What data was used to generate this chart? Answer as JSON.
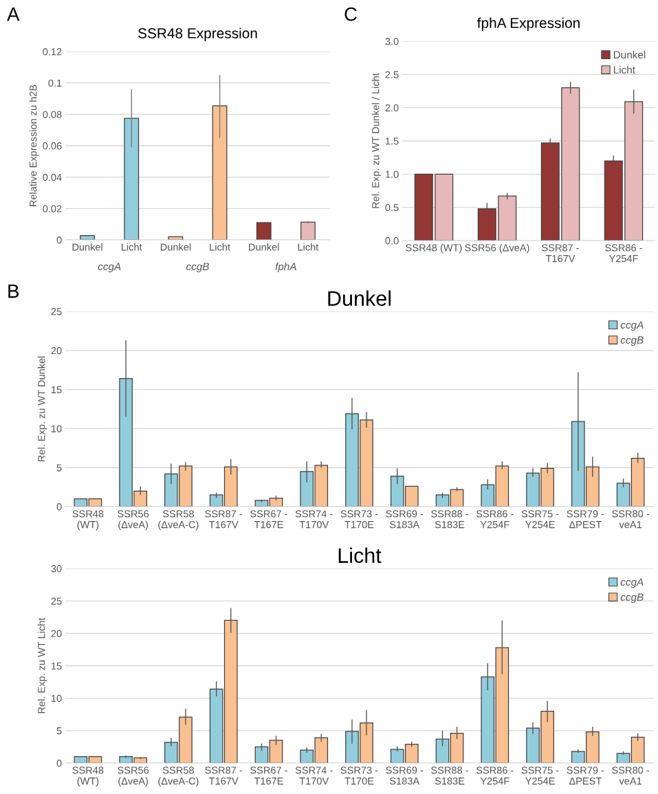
{
  "chart_data": [
    {
      "type": "bar",
      "title": "SSR48 Expression",
      "ylabel": "Relative Expression zu h2B",
      "annotations": [
        "A",
        "ccgA",
        "ccgB",
        "fphA"
      ],
      "categories": [
        "Dunkel",
        "Licht",
        "Dunkel",
        "Licht",
        "Dunkel",
        "Licht"
      ],
      "values": [
        0.0028,
        0.0775,
        0.002,
        0.0855,
        0.011,
        0.0113
      ],
      "colors": [
        "#92cddc",
        "#92cddc",
        "#fac090",
        "#fac090",
        "#943634",
        "#e6b9b8"
      ],
      "errors": [
        null,
        [
          0.059,
          0.096
        ],
        null,
        [
          0.065,
          0.105
        ],
        null,
        0.0007
      ],
      "ylim": [
        0,
        0.12
      ],
      "yticks": [
        0,
        0.02,
        0.04,
        0.06,
        0.08,
        0.1,
        0.12
      ],
      "grid": "y",
      "legend": false
    },
    {
      "type": "bar",
      "title": "fphA Expression",
      "ylabel": "Rel. Exp. zu WT Dunkel / Licht",
      "annotations": [
        "C"
      ],
      "categories": [
        "SSR48 (WT)",
        "SSR56 (ΔveA)",
        "SSR87 -\nT167V",
        "SSR86 -\nY254F"
      ],
      "series": [
        {
          "name": "Dunkel",
          "color": "#943634",
          "values": [
            1.0,
            0.48,
            1.47,
            1.2
          ],
          "errors": [
            null,
            0.09,
            0.07,
            0.08
          ]
        },
        {
          "name": "Licht",
          "color": "#e6b9b8",
          "values": [
            1.0,
            0.67,
            2.3,
            2.09
          ],
          "errors": [
            null,
            0.05,
            0.09,
            0.18
          ]
        }
      ],
      "ylim": [
        0,
        3.0
      ],
      "yticks": [
        {
          "value": 0,
          "label": "0.0"
        },
        0.5,
        {
          "value": 1,
          "label": "1.0"
        },
        1.5,
        {
          "value": 2,
          "label": "2.0"
        },
        2.5,
        {
          "value": 3,
          "label": "3.0"
        }
      ],
      "grid": "y",
      "legend": "top right"
    },
    {
      "type": "bar",
      "title": "Dunkel",
      "ylabel": "Rel. Exp. zu WT Dunkel",
      "annotations": [
        "B"
      ],
      "categories": [
        "SSR48\n(WT)",
        "SSR56\n(ΔveA)",
        "SSR58\n(ΔveA-C)",
        "SSR87 -\nT167V",
        "SSR67 -\nT167E",
        "SSR74 -\nT170V",
        "SSR73 -\nT170E",
        "SSR69 -\nS183A",
        "SSR88 -\nS183E",
        "SSR86 -\nY254F",
        "SSR75 -\nY254E",
        "SSR79 -\nΔPEST",
        "SSR80 -\nveA1"
      ],
      "series": [
        {
          "name": "ccgA",
          "color": "#92cddc",
          "values": [
            1.0,
            16.4,
            4.2,
            1.5,
            0.8,
            4.5,
            11.9,
            3.9,
            1.5,
            2.8,
            4.3,
            10.9,
            3.0
          ],
          "errors": [
            null,
            [
              11.5,
              21.3
            ],
            [
              2.9,
              5.5
            ],
            [
              1.1,
              1.8
            ],
            [
              0.6,
              0.9
            ],
            [
              3.1,
              5.8
            ],
            [
              9.9,
              13.9
            ],
            [
              2.9,
              4.9
            ],
            [
              1.1,
              1.8
            ],
            [
              2.2,
              3.5
            ],
            [
              3.8,
              4.9
            ],
            [
              4.6,
              17.2
            ],
            [
              2.5,
              3.6
            ]
          ]
        },
        {
          "name": "ccgB",
          "color": "#fac090",
          "values": [
            1.0,
            2.0,
            5.2,
            5.1,
            1.1,
            5.3,
            11.1,
            2.6,
            2.2,
            5.2,
            4.9,
            5.1,
            6.2
          ],
          "errors": [
            null,
            [
              1.5,
              2.6
            ],
            [
              4.6,
              5.7
            ],
            [
              4.1,
              6.1
            ],
            [
              0.8,
              1.4
            ],
            [
              5.0,
              5.8
            ],
            [
              10.1,
              12.1
            ],
            null,
            [
              2.0,
              2.5
            ],
            [
              4.8,
              5.8
            ],
            [
              4.3,
              5.6
            ],
            [
              3.8,
              6.4
            ],
            [
              5.6,
              6.9
            ]
          ]
        }
      ],
      "ylim": [
        0,
        25
      ],
      "yticks": [
        0,
        5,
        10,
        15,
        20,
        25
      ],
      "grid": "y",
      "legend": "top right"
    },
    {
      "type": "bar",
      "title": "Licht",
      "ylabel": "Rel. Exp. zu WT Licht",
      "categories": [
        "SSR48\n(WT)",
        "SSR56\n(ΔveA)",
        "SSR58\n(ΔveA-C)",
        "SSR87 -\nT167V",
        "SSR67 -\nT167E",
        "SSR74 -\nT170V",
        "SSR73 -\nT170E",
        "SSR69 -\nS183A",
        "SSR88 -\nS183E",
        "SSR86 -\nY254F",
        "SSR75 -\nY254E",
        "SSR79 -\nΔPEST",
        "SSR80 -\nveA1"
      ],
      "series": [
        {
          "name": "ccgA",
          "color": "#92cddc",
          "values": [
            1.0,
            1.0,
            3.2,
            11.4,
            2.5,
            2.0,
            4.9,
            2.1,
            3.7,
            13.3,
            5.4,
            1.8,
            1.5
          ],
          "errors": [
            null,
            [
              0.8,
              1.2
            ],
            [
              2.6,
              3.9
            ],
            [
              10.3,
              12.6
            ],
            [
              1.9,
              3.0
            ],
            [
              1.6,
              2.4
            ],
            [
              3.0,
              6.7
            ],
            [
              1.8,
              2.6
            ],
            [
              2.6,
              5.0
            ],
            [
              11.2,
              15.4
            ],
            [
              4.5,
              6.3
            ],
            [
              1.6,
              2.1
            ],
            [
              1.3,
              1.8
            ]
          ]
        },
        {
          "name": "ccgB",
          "color": "#fac090",
          "values": [
            1.0,
            0.8,
            7.1,
            22.0,
            3.5,
            3.9,
            6.2,
            2.9,
            4.6,
            17.8,
            8.0,
            4.8,
            4.0
          ],
          "errors": [
            null,
            [
              0.6,
              0.9
            ],
            [
              5.9,
              8.4
            ],
            [
              20.1,
              23.9
            ],
            [
              2.8,
              4.2
            ],
            [
              3.3,
              4.5
            ],
            [
              4.3,
              8.2
            ],
            [
              2.5,
              3.3
            ],
            [
              3.7,
              5.6
            ],
            [
              13.7,
              22.0
            ],
            [
              6.3,
              9.6
            ],
            [
              4.2,
              5.6
            ],
            [
              3.4,
              4.6
            ]
          ]
        }
      ],
      "ylim": [
        0,
        30
      ],
      "yticks": [
        0,
        5,
        10,
        15,
        20,
        25,
        30
      ],
      "grid": "y",
      "legend": "top right"
    }
  ]
}
